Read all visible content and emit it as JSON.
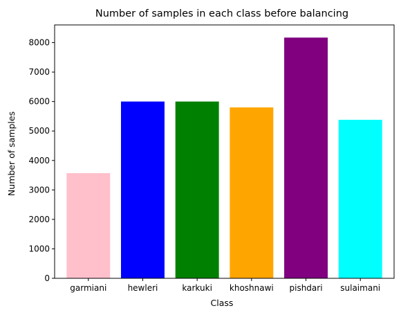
{
  "chart_data": {
    "type": "bar",
    "title": "Number of samples in each class before balancing",
    "xlabel": "Class",
    "ylabel": "Number of samples",
    "categories": [
      "garmiani",
      "hewleri",
      "karkuki",
      "khoshnawi",
      "pishdari",
      "sulaimani"
    ],
    "values": [
      3570,
      6000,
      6000,
      5800,
      8170,
      5380
    ],
    "colors": [
      "#ffc0cb",
      "#0000ff",
      "#008000",
      "#ffa500",
      "#800080",
      "#00ffff"
    ],
    "ylim": [
      0,
      8600
    ],
    "yticks": [
      0,
      1000,
      2000,
      3000,
      4000,
      5000,
      6000,
      7000,
      8000
    ],
    "grid": false,
    "legend": "none"
  }
}
